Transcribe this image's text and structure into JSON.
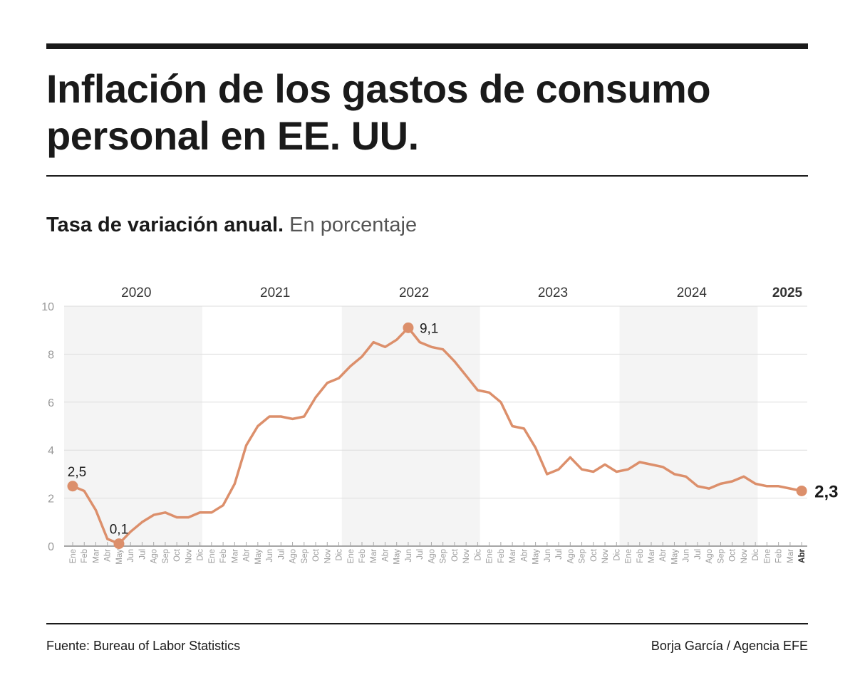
{
  "title": "Inflación de los gastos de consumo personal en EE. UU.",
  "subtitle_bold": "Tasa de variación anual.",
  "subtitle_unit": "En porcentaje",
  "source": "Fuente: Bureau of Labor Statistics",
  "credit": "Borja García / Agencia EFE",
  "colors": {
    "line": "#dc8f6b",
    "band": "#f4f4f4",
    "grid": "#dddddd",
    "axis_text": "#999999"
  },
  "chart_data": {
    "type": "line",
    "title": "Inflación de los gastos de consumo personal en EE. UU.",
    "ylabel": "",
    "ylim": [
      0,
      10
    ],
    "yticks": [
      0,
      2,
      4,
      6,
      8,
      10
    ],
    "grid": true,
    "years": [
      "2020",
      "2021",
      "2022",
      "2023",
      "2024",
      "2025"
    ],
    "shaded_years": [
      "2020",
      "2022",
      "2024"
    ],
    "months": [
      "Ene",
      "Feb",
      "Mar",
      "Abr",
      "May",
      "Jun",
      "Jul",
      "Ago",
      "Sep",
      "Oct",
      "Nov",
      "Dic"
    ],
    "last_month_label": "Abr",
    "series": [
      {
        "values": [
          2.5,
          2.3,
          1.5,
          0.3,
          0.1,
          0.6,
          1.0,
          1.3,
          1.4,
          1.2,
          1.2,
          1.4,
          1.4,
          1.7,
          2.6,
          4.2,
          5.0,
          5.4,
          5.4,
          5.3,
          5.4,
          6.2,
          6.8,
          7.0,
          7.5,
          7.9,
          8.5,
          8.3,
          8.6,
          9.1,
          8.5,
          8.3,
          8.2,
          7.7,
          7.1,
          6.5,
          6.4,
          6.0,
          5.0,
          4.9,
          4.1,
          3.0,
          3.2,
          3.7,
          3.2,
          3.1,
          3.4,
          3.1,
          3.2,
          3.5,
          3.4,
          3.3,
          3.0,
          2.9,
          2.5,
          2.4,
          2.6,
          2.7,
          2.9,
          2.6,
          2.5,
          2.5,
          2.4,
          2.3
        ]
      }
    ],
    "annotations": [
      {
        "index": 0,
        "label": "2,5"
      },
      {
        "index": 4,
        "label": "0,1"
      },
      {
        "index": 29,
        "label": "9,1"
      },
      {
        "index": 63,
        "label": "2,3"
      }
    ]
  }
}
